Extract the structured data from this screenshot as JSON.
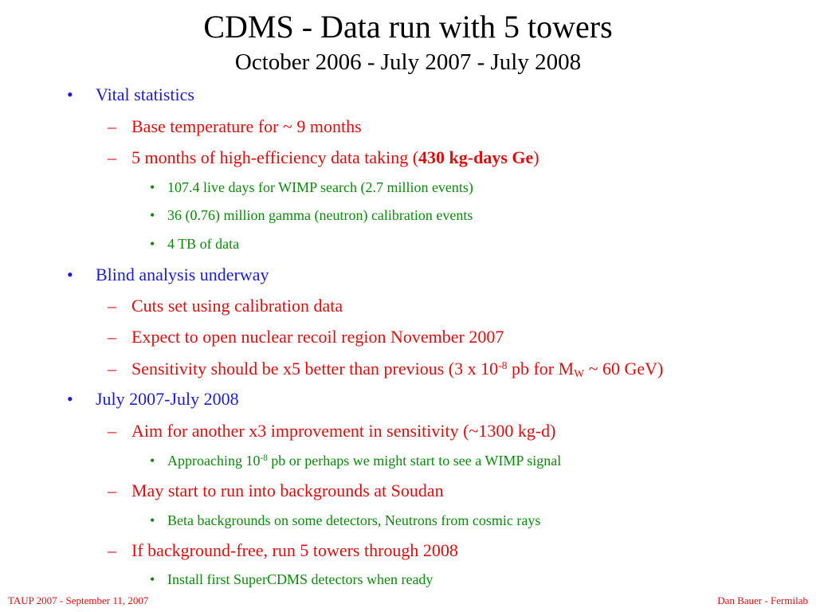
{
  "slide": {
    "title": "CDMS - Data run with 5 towers",
    "subtitle": "October 2006 - July 2007 - July 2008",
    "bullet_mark": "•",
    "dash_mark": "–",
    "items": {
      "vital": "Vital statistics",
      "base_temp": "Base temperature for ~ 9 months",
      "five_months_a": "5 months of high-efficiency data taking (",
      "five_months_bold": "430 kg-days Ge",
      "five_months_b": ")",
      "live_days": "107.4 live days for WIMP search (2.7 million events)",
      "gamma": "36 (0.76) million gamma (neutron) calibration events",
      "four_tb": "4 TB of data",
      "blind": "Blind analysis underway",
      "cuts": "Cuts set using calibration data",
      "expect": "Expect to open nuclear recoil region November 2007",
      "sens_a": "Sensitivity should be x5 better than previous (3 x 10",
      "sens_sup": "-8",
      "sens_b": " pb for M",
      "sens_sub": "W",
      "sens_c": " ~ 60 GeV)",
      "july": "July 2007-July 2008",
      "aim": "Aim for another x3 improvement in sensitivity (~1300 kg-d)",
      "approach_a": "Approaching 10",
      "approach_sup": "-8",
      "approach_b": " pb or perhaps we might start to see a WIMP signal",
      "may_start": "May start to run into backgrounds at Soudan",
      "beta": "Beta backgrounds on some detectors, Neutrons from cosmic rays",
      "if_free": "If background-free, run 5 towers through 2008",
      "install": "Install first SuperCDMS detectors when ready"
    }
  },
  "footer": {
    "left": "TAUP 2007 - September 11, 2007",
    "right": "Dan Bauer - Fermilab"
  },
  "colors": {
    "level1": "#1c1cd6",
    "level2": "#e00d0d",
    "level3": "#0a8a0a"
  }
}
